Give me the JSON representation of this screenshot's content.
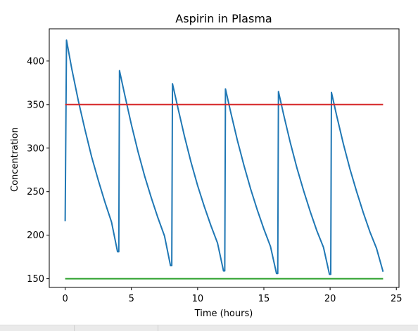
{
  "chart_data": {
    "type": "line",
    "title": "Aspirin in Plasma",
    "xlabel": "Time (hours)",
    "ylabel": "Concentration",
    "xlim": [
      -1.2,
      25.2
    ],
    "ylim": [
      140,
      437
    ],
    "xticks": [
      0,
      5,
      10,
      15,
      20,
      25
    ],
    "yticks": [
      150,
      200,
      250,
      300,
      350,
      400
    ],
    "grid": false,
    "series": [
      {
        "color": "#1f77b4",
        "points": [
          [
            0.0,
            216
          ],
          [
            0.1,
            424
          ],
          [
            0.5,
            391
          ],
          [
            1.0,
            354
          ],
          [
            1.5,
            321
          ],
          [
            2.0,
            290
          ],
          [
            2.5,
            263
          ],
          [
            3.0,
            238
          ],
          [
            3.5,
            215
          ],
          [
            3.95,
            181
          ],
          [
            4.05,
            181
          ],
          [
            4.1,
            389
          ],
          [
            4.5,
            361
          ],
          [
            5.0,
            327
          ],
          [
            5.5,
            296
          ],
          [
            6.0,
            268
          ],
          [
            6.5,
            243
          ],
          [
            7.0,
            220
          ],
          [
            7.5,
            199
          ],
          [
            7.95,
            165
          ],
          [
            8.05,
            165
          ],
          [
            8.1,
            374
          ],
          [
            8.5,
            347
          ],
          [
            9.0,
            314
          ],
          [
            9.5,
            284
          ],
          [
            10.0,
            257
          ],
          [
            10.5,
            233
          ],
          [
            11.0,
            211
          ],
          [
            11.5,
            191
          ],
          [
            11.95,
            159
          ],
          [
            12.05,
            159
          ],
          [
            12.1,
            368
          ],
          [
            12.5,
            341
          ],
          [
            13.0,
            309
          ],
          [
            13.5,
            280
          ],
          [
            14.0,
            253
          ],
          [
            14.5,
            229
          ],
          [
            15.0,
            207
          ],
          [
            15.5,
            187
          ],
          [
            15.95,
            156
          ],
          [
            16.05,
            156
          ],
          [
            16.1,
            365
          ],
          [
            16.5,
            338
          ],
          [
            17.0,
            306
          ],
          [
            17.5,
            277
          ],
          [
            18.0,
            251
          ],
          [
            18.5,
            227
          ],
          [
            19.0,
            205
          ],
          [
            19.5,
            186
          ],
          [
            19.95,
            155
          ],
          [
            20.05,
            155
          ],
          [
            20.1,
            364
          ],
          [
            20.5,
            337
          ],
          [
            21.0,
            305
          ],
          [
            21.5,
            276
          ],
          [
            22.0,
            250
          ],
          [
            22.5,
            226
          ],
          [
            23.0,
            204
          ],
          [
            23.5,
            185
          ],
          [
            24.0,
            158
          ]
        ]
      },
      {
        "color": "#d62728",
        "points": [
          [
            0,
            350
          ],
          [
            24,
            350
          ]
        ]
      },
      {
        "color": "#2ca02c",
        "points": [
          [
            0,
            150
          ],
          [
            24,
            150
          ]
        ]
      }
    ]
  }
}
